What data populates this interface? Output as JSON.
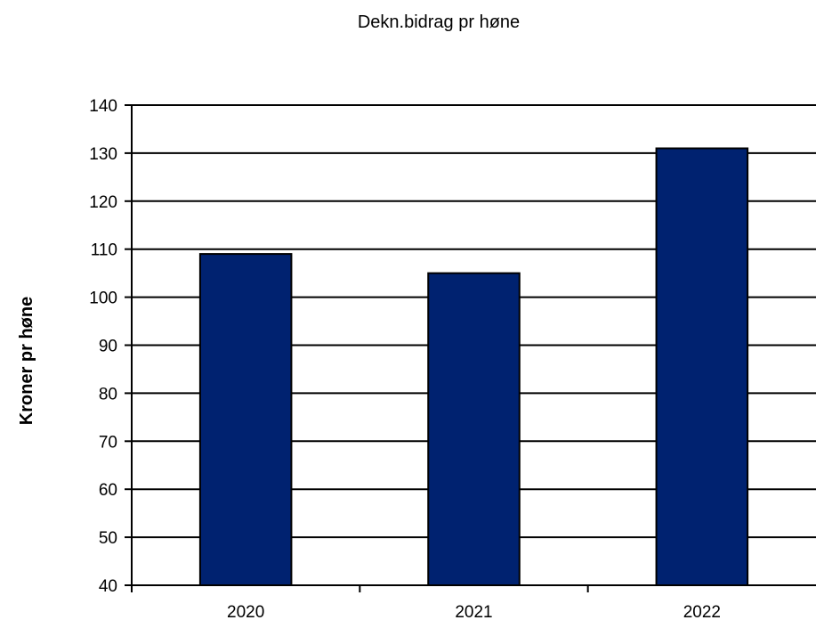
{
  "chart_data": {
    "type": "bar",
    "title": "Dekn.bidrag pr høne",
    "xlabel": "",
    "ylabel": "Kroner pr høne",
    "categories": [
      "2020",
      "2021",
      "2022"
    ],
    "series": [
      {
        "values": [
          109,
          105,
          131
        ],
        "color": "#002270"
      }
    ],
    "ylim": [
      40,
      140
    ],
    "yticks": [
      40,
      50,
      60,
      70,
      80,
      90,
      100,
      110,
      120,
      130,
      140
    ],
    "grid": true,
    "legend": "none"
  }
}
